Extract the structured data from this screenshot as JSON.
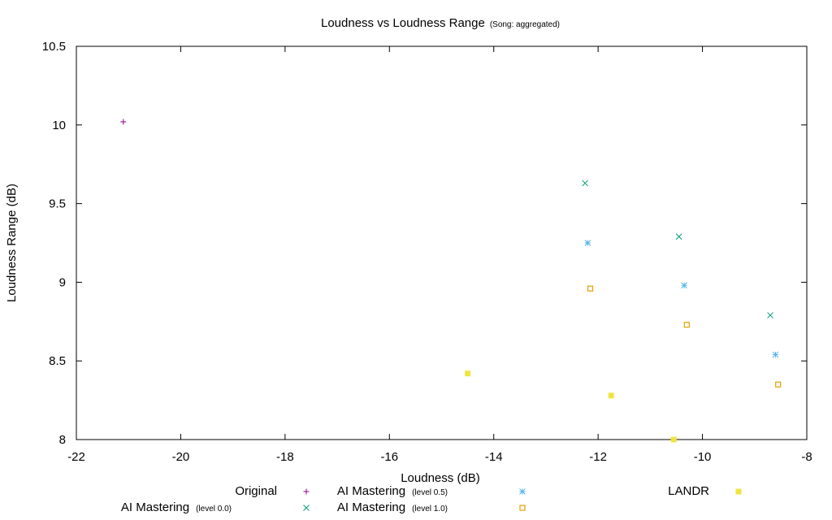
{
  "chart_data": {
    "type": "scatter",
    "title": "Loudness vs Loudness Range",
    "subtitle": "(Song: aggregated)",
    "xlabel": "Loudness (dB)",
    "ylabel": "Loudness Range (dB)",
    "xlim": [
      -22,
      -8
    ],
    "ylim": [
      8,
      10.5
    ],
    "x_ticks": [
      "-22",
      "-20",
      "-18",
      "-16",
      "-14",
      "-12",
      "-10",
      "-8"
    ],
    "y_ticks": [
      "8",
      "8.5",
      "9",
      "9.5",
      "10",
      "10.5"
    ],
    "grid": false,
    "legend_position": "bottom",
    "series": [
      {
        "name": "Original",
        "name_sub": "",
        "marker": "plus",
        "color": "#94008f",
        "points": [
          [
            -21.1,
            10.02
          ]
        ]
      },
      {
        "name": "AI Mastering",
        "name_sub": "(level 0.0)",
        "marker": "cross",
        "color": "#009e73",
        "points": [
          [
            -12.25,
            9.63
          ],
          [
            -10.45,
            9.29
          ],
          [
            -8.7,
            8.79
          ]
        ]
      },
      {
        "name": "AI Mastering",
        "name_sub": "(level 0.5)",
        "marker": "star",
        "color": "#56b4e9",
        "points": [
          [
            -12.2,
            9.25
          ],
          [
            -10.35,
            8.98
          ],
          [
            -8.6,
            8.54
          ]
        ]
      },
      {
        "name": "AI Mastering",
        "name_sub": "(level 1.0)",
        "marker": "square-open",
        "color": "#e69f00",
        "points": [
          [
            -12.15,
            8.96
          ],
          [
            -10.3,
            8.73
          ],
          [
            -8.55,
            8.35
          ]
        ]
      },
      {
        "name": "LANDR",
        "name_sub": "",
        "marker": "square-filled",
        "color": "#f0e442",
        "points": [
          [
            -14.5,
            8.42
          ],
          [
            -11.75,
            8.28
          ],
          [
            -10.55,
            8.0
          ]
        ]
      }
    ]
  }
}
